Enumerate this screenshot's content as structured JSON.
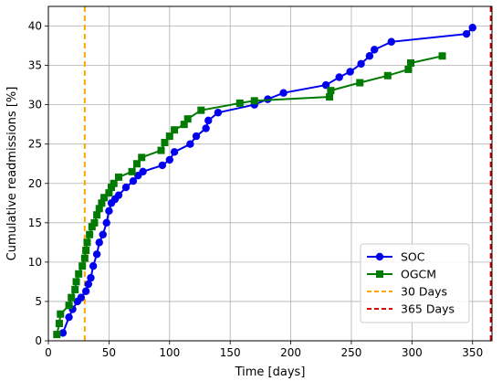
{
  "chart_data": {
    "type": "line",
    "xlabel": "Time [days]",
    "ylabel": "Cumulative readmissions [%]",
    "xlim": [
      0,
      366
    ],
    "ylim": [
      0,
      42.5
    ],
    "xticks": [
      0,
      50,
      100,
      150,
      200,
      250,
      300,
      350
    ],
    "yticks": [
      0,
      5,
      10,
      15,
      20,
      25,
      30,
      35,
      40
    ],
    "grid": true,
    "legend_position": "lower-right",
    "series": [
      {
        "name": "SOC",
        "color": "#0000ee",
        "marker": "circle",
        "x": [
          12,
          17,
          20,
          24,
          27,
          31,
          33,
          35,
          37,
          40,
          42,
          45,
          48,
          50,
          52,
          55,
          58,
          64,
          70,
          74,
          78,
          94,
          100,
          104,
          117,
          122,
          130,
          132,
          140,
          170,
          181,
          194,
          229,
          240,
          249,
          258,
          265,
          269,
          283,
          345,
          350
        ],
        "y": [
          1.0,
          3.0,
          4.0,
          5.0,
          5.5,
          6.3,
          7.2,
          8.0,
          9.5,
          11.0,
          12.5,
          13.5,
          15.0,
          16.5,
          17.5,
          18.0,
          18.5,
          19.5,
          20.3,
          21.0,
          21.5,
          22.3,
          23.0,
          24.0,
          25.0,
          26.0,
          27.0,
          28.0,
          29.0,
          30.0,
          30.7,
          31.5,
          32.5,
          33.5,
          34.2,
          35.2,
          36.2,
          37.0,
          38.0,
          39.0,
          39.8
        ]
      },
      {
        "name": "OGCM",
        "color": "#007a00",
        "marker": "square",
        "x": [
          7,
          9,
          10,
          17,
          19,
          22,
          23,
          25,
          28,
          30,
          31,
          32,
          34,
          36,
          38,
          40,
          42,
          44,
          46,
          50,
          52,
          54,
          58,
          69,
          73,
          77,
          93,
          96,
          100,
          104,
          112,
          115,
          126,
          158,
          170,
          232,
          233,
          257,
          280,
          297,
          299,
          325
        ],
        "y": [
          0.8,
          2.2,
          3.4,
          4.5,
          5.5,
          6.5,
          7.5,
          8.5,
          9.5,
          10.5,
          11.5,
          12.5,
          13.5,
          14.5,
          15.0,
          16.0,
          16.8,
          17.5,
          18.2,
          18.8,
          19.5,
          20.0,
          20.8,
          21.5,
          22.5,
          23.3,
          24.2,
          25.2,
          26.0,
          26.8,
          27.5,
          28.2,
          29.3,
          30.2,
          30.5,
          31.0,
          31.8,
          32.8,
          33.7,
          34.5,
          35.3,
          36.2
        ]
      }
    ],
    "reference_lines": [
      {
        "name": "30 Days",
        "x": 30,
        "color": "#ffa500",
        "style": "dashed"
      },
      {
        "name": "365 Days",
        "x": 365,
        "color": "#dd0000",
        "style": "dashed"
      }
    ]
  }
}
